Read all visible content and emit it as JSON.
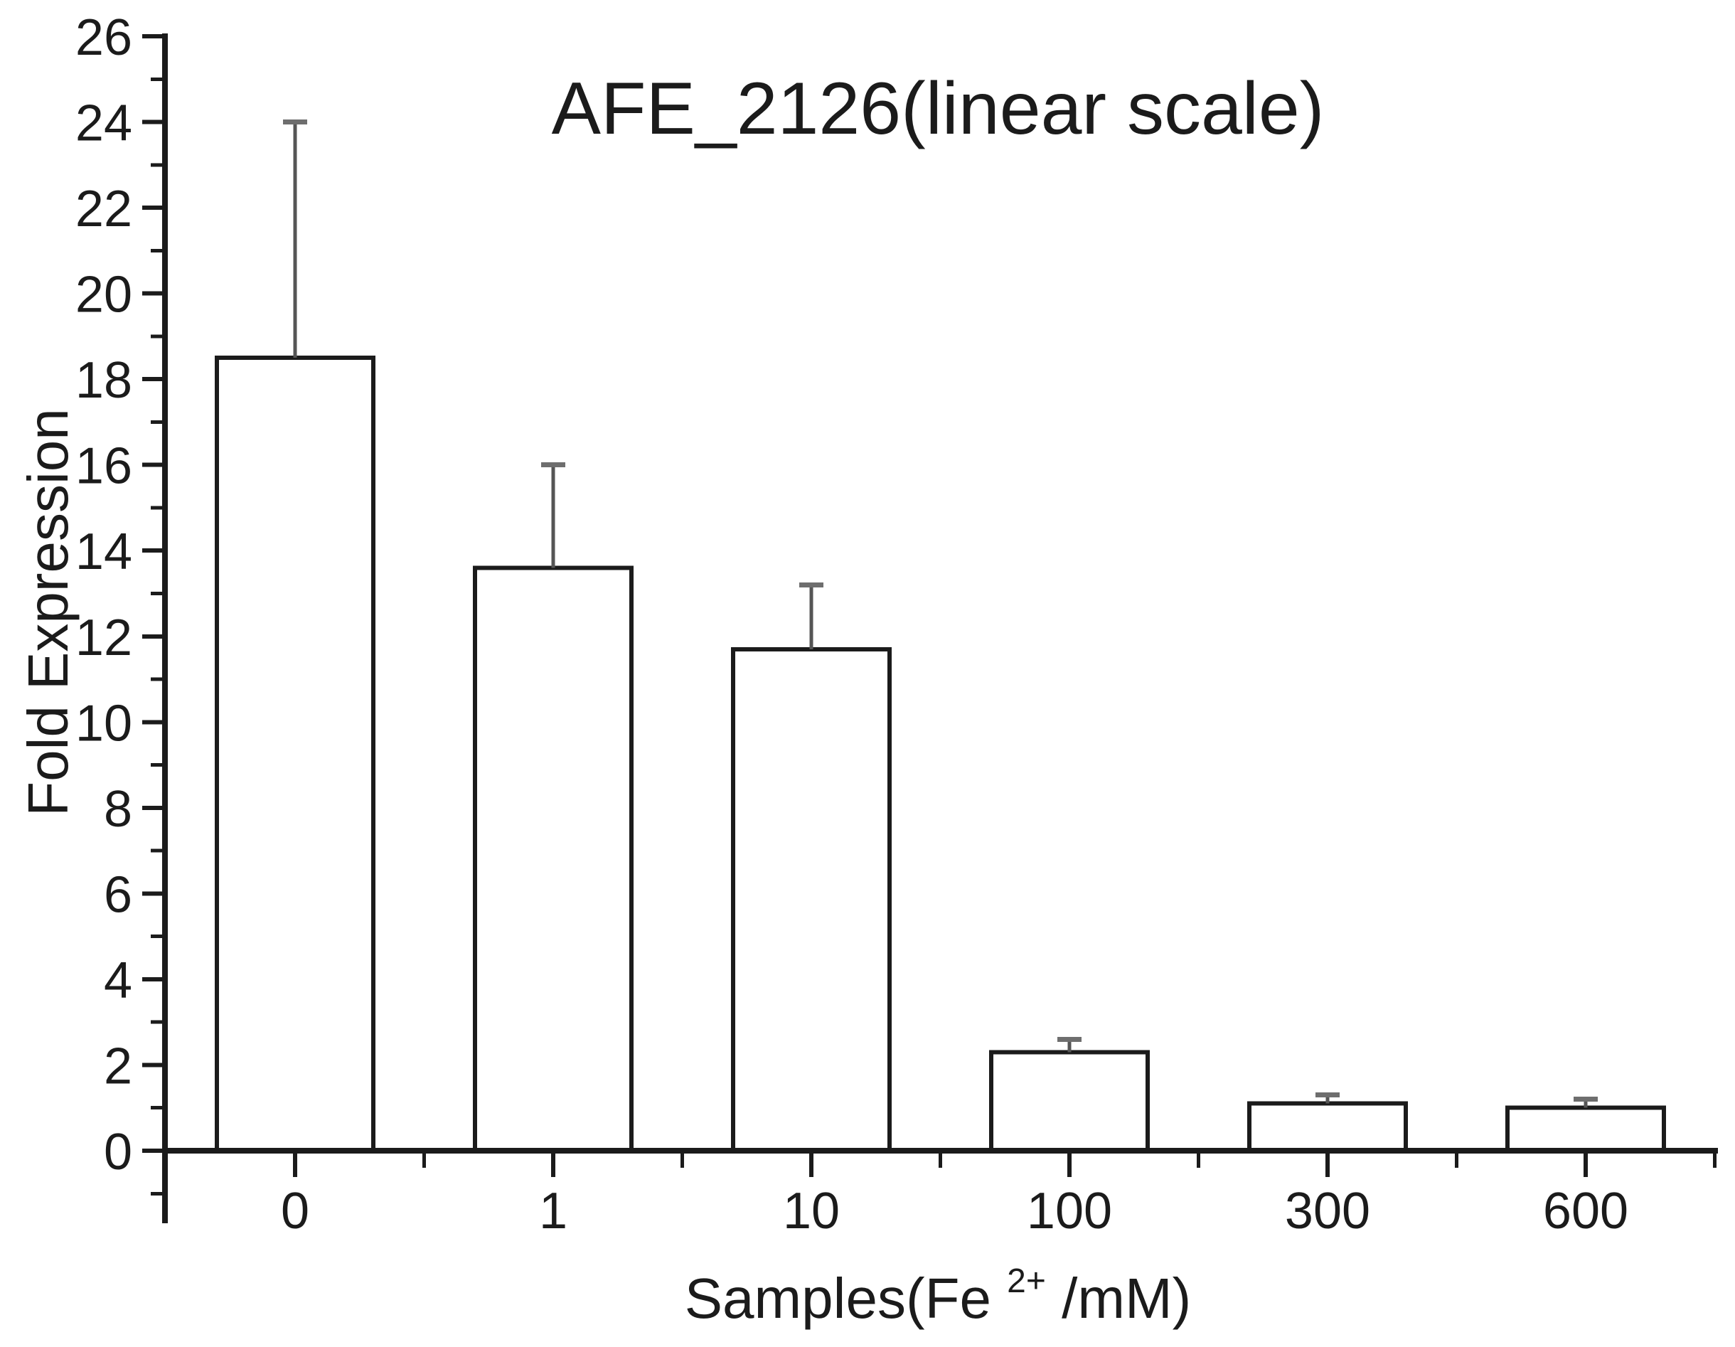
{
  "title": "AFE_2126(linear scale)",
  "axes": {
    "y_label": "Fold Expression",
    "x_label_prefix": "Samples(Fe",
    "x_label_sup": "2+",
    "x_label_suffix": "/mM)"
  },
  "chart_data": {
    "type": "bar",
    "title": "AFE_2126(linear scale)",
    "xlabel": "Samples(Fe2+/mM)",
    "ylabel": "Fold Expression",
    "categories": [
      "0",
      "1",
      "10",
      "100",
      "300",
      "600"
    ],
    "values": [
      18.5,
      13.6,
      11.7,
      2.3,
      1.1,
      1.0
    ],
    "errors_plus": [
      5.5,
      2.4,
      1.5,
      0.3,
      0.2,
      0.2
    ],
    "error_tops": [
      24.0,
      16.0,
      13.2,
      2.6,
      1.3,
      1.2
    ],
    "ylim": [
      0,
      26
    ],
    "y_major_step": 2,
    "y_minor_step": 1,
    "grid": false,
    "legend_position": "none",
    "bar_fill": "#ffffff",
    "bar_stroke": "#1b1b1b",
    "axis_color": "#1b1b1b",
    "error_color": "#555555",
    "error_cap_color": "#6e6e6e",
    "background": "#ffffff"
  }
}
